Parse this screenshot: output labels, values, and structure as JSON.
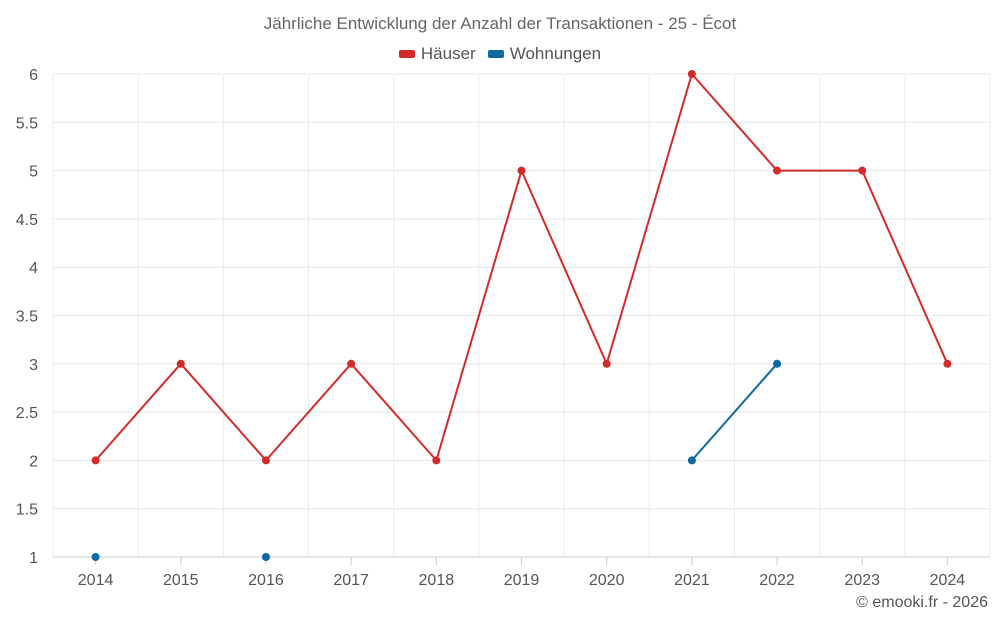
{
  "chart_data": {
    "type": "line",
    "title": "Jährliche Entwicklung der Anzahl der Transaktionen - 25 - Écot",
    "xlabel": "",
    "ylabel": "",
    "categories": [
      "2014",
      "2015",
      "2016",
      "2017",
      "2018",
      "2019",
      "2020",
      "2021",
      "2022",
      "2023",
      "2024"
    ],
    "ylim": [
      1,
      6
    ],
    "yticks": [
      "1",
      "1.5",
      "2",
      "2.5",
      "3",
      "3.5",
      "4",
      "4.5",
      "5",
      "5.5",
      "6"
    ],
    "grid": true,
    "legend_position": "top-center",
    "series": [
      {
        "name": "Häuser",
        "color": "#d42a2a",
        "values": [
          2,
          3,
          2,
          3,
          2,
          5,
          3,
          6,
          5,
          5,
          3
        ]
      },
      {
        "name": "Wohnungen",
        "color": "#0e6aa0",
        "values": [
          1,
          null,
          1,
          null,
          null,
          null,
          null,
          2,
          3,
          null,
          null
        ]
      }
    ]
  },
  "credit": "© emooki.fr - 2026"
}
